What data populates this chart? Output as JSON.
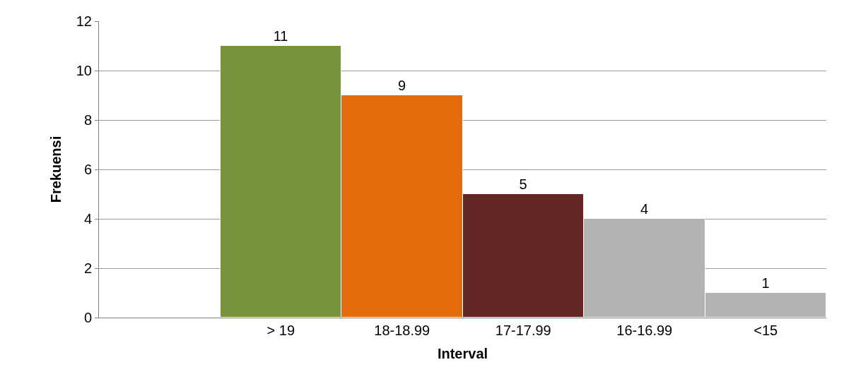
{
  "chart_data": {
    "type": "bar",
    "xlabel": "Interval",
    "ylabel": "Frekuensi",
    "categories": [
      null,
      "> 19",
      "18-18.99",
      "17-17.99",
      "16-16.99",
      "<15"
    ],
    "values": [
      null,
      11,
      9,
      5,
      4,
      1
    ],
    "colors": [
      null,
      "#77933c",
      "#e46c0a",
      "#632523",
      "#b3b3b3",
      "#b3b3b3"
    ],
    "ylim": [
      0,
      12
    ],
    "yticks": [
      0,
      2,
      4,
      6,
      8,
      10,
      12
    ],
    "grid": "y",
    "data_labels": true
  }
}
